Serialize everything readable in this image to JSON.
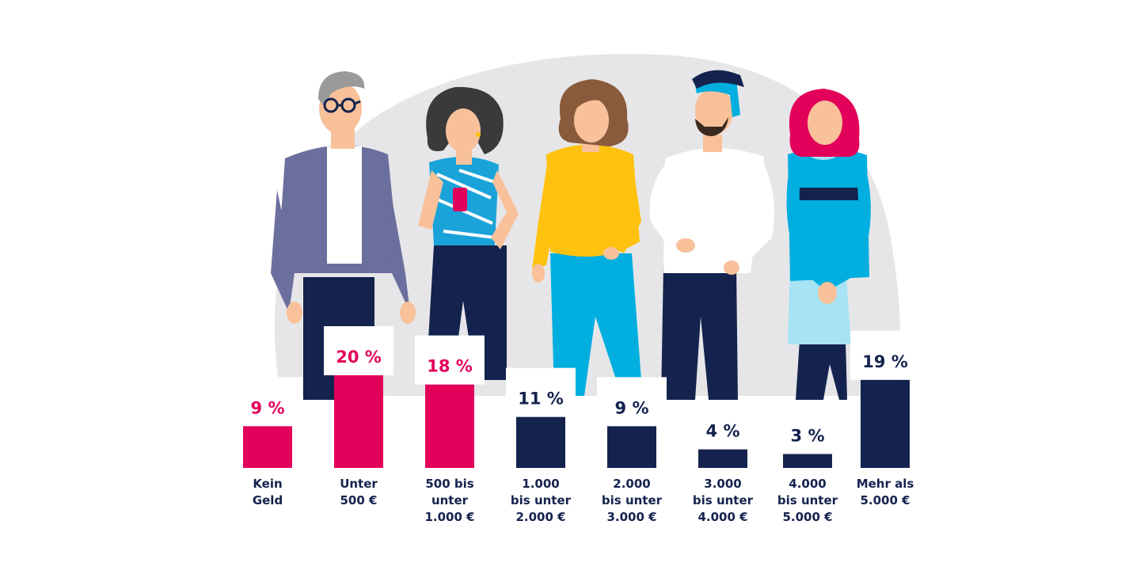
{
  "chart_data": {
    "type": "bar",
    "categories": [
      [
        "Kein",
        "Geld"
      ],
      [
        "Unter",
        "500 €"
      ],
      [
        "500 bis",
        "unter",
        "1.000 €"
      ],
      [
        "1.000",
        "bis unter",
        "2.000 €"
      ],
      [
        "2.000",
        "bis unter",
        "3.000 €"
      ],
      [
        "3.000",
        "bis unter",
        "4.000 €"
      ],
      [
        "4.000",
        "bis unter",
        "5.000 €"
      ],
      [
        "Mehr als",
        "5.000 €"
      ]
    ],
    "values": [
      9,
      20,
      18,
      11,
      9,
      4,
      3,
      19
    ],
    "value_labels": [
      "9 %",
      "20 %",
      "18 %",
      "11 %",
      "9 %",
      "4 %",
      "3 %",
      "19 %"
    ],
    "unit": "%",
    "ylim": [
      0,
      20
    ],
    "bar_colors": [
      "#e2005a",
      "#e2005a",
      "#e2005a",
      "#14234e",
      "#14234e",
      "#14234e",
      "#14234e",
      "#14234e"
    ],
    "grid": false,
    "legend": "none"
  },
  "illustration": {
    "people": [
      "man-glasses-icon",
      "woman-cup-icon",
      "woman-curly-icon",
      "man-hat-icon",
      "woman-pink-hair-icon"
    ],
    "colors": {
      "magenta": "#e2005a",
      "navy": "#14234e",
      "cyan": "#00aee0",
      "yellow": "#ffc20e",
      "purple": "#6b6f9e",
      "skin": "#f8c19a",
      "backdrop": "#e6e6e8"
    }
  }
}
